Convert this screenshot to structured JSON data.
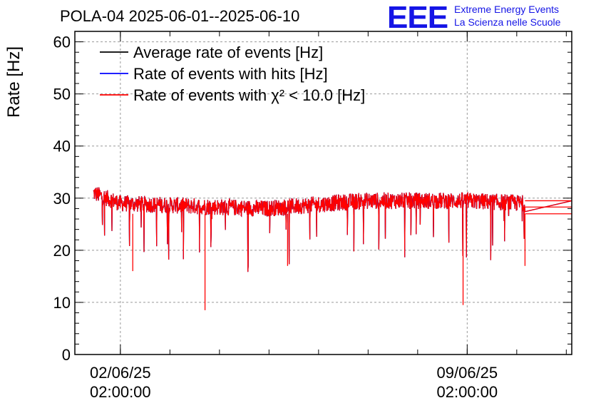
{
  "header": {
    "title": "POLA-04 2025-06-01--2025-06-10",
    "logo_mark": "EEE",
    "logo_line1": "Extreme Energy Events",
    "logo_line2": "La Scienza nelle Scuole"
  },
  "chart_data": {
    "type": "line",
    "title": "POLA-04 2025-06-01--2025-06-10",
    "xlabel": "",
    "ylabel": "Rate [Hz]",
    "ylim": [
      0,
      62
    ],
    "y_ticks": [
      0,
      10,
      20,
      30,
      40,
      50,
      60
    ],
    "x_ticks": [
      {
        "date": "02/06/25",
        "time": "02:00:00"
      },
      {
        "date": "09/06/25",
        "time": "02:00:00"
      }
    ],
    "xlim": [
      "2025-06-01T03:57",
      "2025-06-11T04:39"
    ],
    "grid": true,
    "legend_position": "top-left",
    "series": [
      {
        "name": "Average rate of events [Hz]",
        "color": "#000000",
        "x": [
          "2025-06-01T12:57",
          "2025-06-02T02:00",
          "2025-06-03T12:00",
          "2025-06-05T00:00",
          "2025-06-07T00:00",
          "2025-06-09T02:00",
          "2025-06-10T06:00",
          "2025-06-11T04:39"
        ],
        "values": [
          31,
          29,
          28.5,
          28,
          29.5,
          29.5,
          29,
          29.5
        ]
      },
      {
        "name": "Rate of events with hits [Hz]",
        "color": "#0000ff",
        "x": [
          "2025-06-01T12:57",
          "2025-06-02T02:00",
          "2025-06-03T12:00",
          "2025-06-05T00:00",
          "2025-06-07T00:00",
          "2025-06-09T02:00",
          "2025-06-10T06:00",
          "2025-06-11T04:39"
        ],
        "values": [
          31,
          29,
          28.5,
          28,
          29.5,
          29.5,
          29,
          29.5
        ]
      },
      {
        "name": "Rate of events with χ² < 10.0 [Hz]",
        "color": "#ff0000",
        "x": [
          "2025-06-01T12:57",
          "2025-06-02T02:00",
          "2025-06-03T12:00",
          "2025-06-05T00:00",
          "2025-06-07T00:00",
          "2025-06-09T02:00",
          "2025-06-10T06:00",
          "2025-06-11T04:39"
        ],
        "values": [
          31,
          29,
          28.5,
          28,
          29.5,
          29.5,
          29,
          29.5
        ],
        "min_dips": [
          {
            "x": "2025-06-03T19:00",
            "value": 8.5
          },
          {
            "x": "2025-06-09T00:00",
            "value": 9.5
          },
          {
            "x": "2025-06-02T08:00",
            "value": 16
          },
          {
            "x": "2025-06-10T06:00",
            "value": 17
          },
          {
            "x": "2025-06-05T11:00",
            "value": 17
          }
        ]
      }
    ]
  }
}
